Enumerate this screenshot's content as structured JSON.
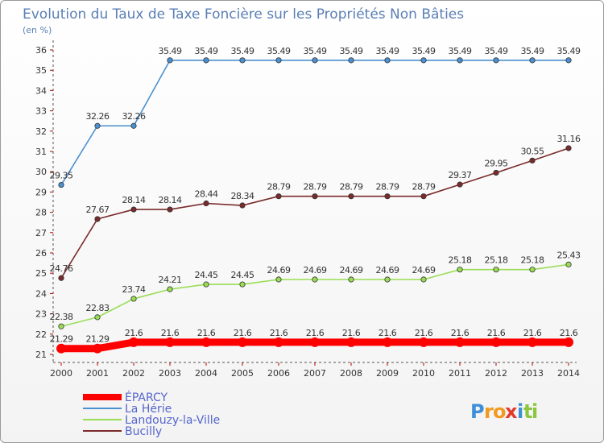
{
  "chart_data": {
    "type": "line",
    "title": "Evolution du Taux de Taxe Foncière sur les Propriétés Non Bâties",
    "unit_label": "(en %)",
    "xlabel": "",
    "ylabel": "",
    "x": [
      "2000",
      "2001",
      "2002",
      "2003",
      "2004",
      "2005",
      "2006",
      "2007",
      "2008",
      "2009",
      "2010",
      "2011",
      "2012",
      "2013",
      "2014"
    ],
    "ylim": [
      21,
      36
    ],
    "yticks": [
      21,
      22,
      23,
      24,
      25,
      26,
      27,
      28,
      29,
      30,
      31,
      32,
      33,
      34,
      35,
      36
    ],
    "series": [
      {
        "name": "ÉPARCY",
        "color": "#ff0000",
        "values": [
          21.29,
          21.29,
          21.6,
          21.6,
          21.6,
          21.6,
          21.6,
          21.6,
          21.6,
          21.6,
          21.6,
          21.6,
          21.6,
          21.6,
          21.6
        ],
        "labels": [
          "21.29",
          "21.29",
          "21.6",
          "21.6",
          "21.6",
          "21.6",
          "21.6",
          "21.6",
          "21.6",
          "21.6",
          "21.6",
          "21.6",
          "21.6",
          "21.6",
          "21.6"
        ]
      },
      {
        "name": "La Hérie",
        "color": "#4a90d0",
        "values": [
          29.35,
          32.26,
          32.26,
          35.49,
          35.49,
          35.49,
          35.49,
          35.49,
          35.49,
          35.49,
          35.49,
          35.49,
          35.49,
          35.49,
          35.49
        ],
        "labels": [
          "29.35",
          "32.26",
          "32.26",
          "35.49",
          "35.49",
          "35.49",
          "35.49",
          "35.49",
          "35.49",
          "35.49",
          "35.49",
          "35.49",
          "35.49",
          "35.49",
          "35.49"
        ]
      },
      {
        "name": "Landouzy-la-Ville",
        "color": "#99dd55",
        "values": [
          22.38,
          22.83,
          23.74,
          24.21,
          24.45,
          24.45,
          24.69,
          24.69,
          24.69,
          24.69,
          24.69,
          25.18,
          25.18,
          25.18,
          25.43
        ],
        "labels": [
          "22.38",
          "22.83",
          "23.74",
          "24.21",
          "24.45",
          "24.45",
          "24.69",
          "24.69",
          "24.69",
          "24.69",
          "24.69",
          "25.18",
          "25.18",
          "25.18",
          "25.43"
        ]
      },
      {
        "name": "Bucilly",
        "color": "#7a2a2a",
        "values": [
          24.76,
          27.67,
          28.14,
          28.14,
          28.44,
          28.34,
          28.79,
          28.79,
          28.79,
          28.79,
          28.79,
          29.37,
          29.95,
          30.55,
          31.16
        ],
        "labels": [
          "24.76",
          "27.67",
          "28.14",
          "28.14",
          "28.44",
          "28.34",
          "28.79",
          "28.79",
          "28.79",
          "28.79",
          "28.79",
          "29.37",
          "29.95",
          "30.55",
          "31.16"
        ]
      }
    ],
    "legend_position": "bottom-left",
    "grid": false
  },
  "logo": {
    "letters": [
      "P",
      "r",
      "o",
      "x",
      "i",
      "t",
      "i"
    ],
    "colors": [
      "#3c8fd8",
      "#f29a1f",
      "#f29a1f",
      "#e23b2e",
      "#3c8fd8",
      "#8cc63f",
      "#8cc63f"
    ]
  }
}
